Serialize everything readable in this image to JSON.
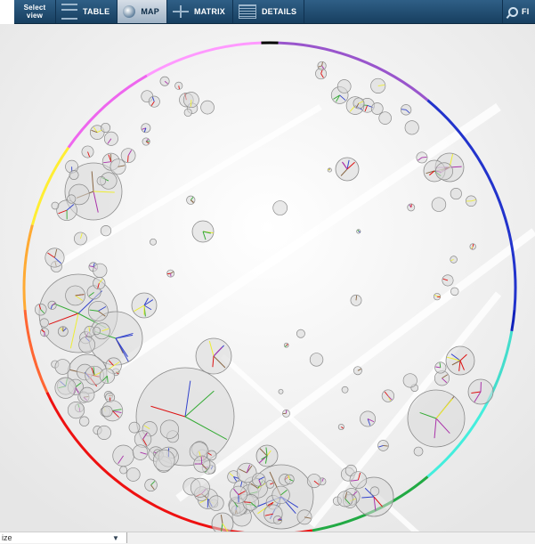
{
  "toolbar": {
    "select_view_line1": "Select",
    "select_view_line2": "view",
    "tabs": [
      {
        "label": "TABLE",
        "icon": "table-icon"
      },
      {
        "label": "MAP",
        "icon": "globe-icon",
        "active": true
      },
      {
        "label": "MATRIX",
        "icon": "matrix-icon"
      },
      {
        "label": "DETAILS",
        "icon": "details-icon"
      }
    ],
    "find_label": "FI",
    "bg_color": "#1f4b70"
  },
  "map": {
    "circle_fill": "#d9d9d9",
    "circle_stroke": "#8a8a8a",
    "ring_colors": [
      "#000000",
      "#9955cc",
      "#2233cc",
      "#1122bb",
      "#44ddcc",
      "#44eedd",
      "#22aa44",
      "#ee1111",
      "#ff6633",
      "#ffaa33",
      "#ffee33",
      "#ee66ee",
      "#ff99ff"
    ],
    "line_colors": [
      "#dd1111",
      "#33aa33",
      "#3344cc",
      "#eeee33",
      "#aa33aa",
      "#886644"
    ]
  },
  "bottom": {
    "size_label": "ize"
  }
}
